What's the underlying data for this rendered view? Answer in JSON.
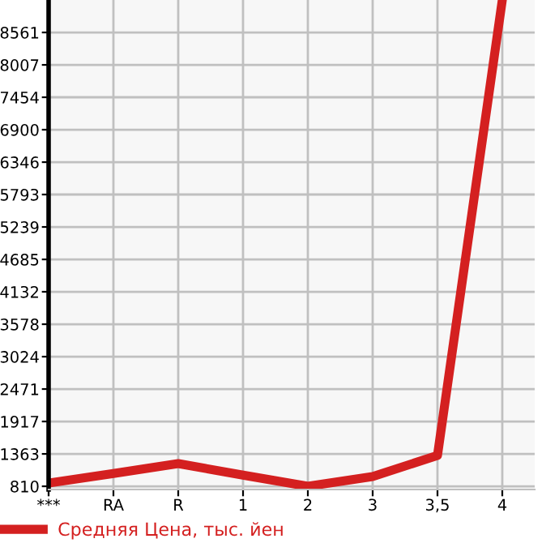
{
  "chart_data": {
    "type": "line",
    "categories": [
      "***",
      "RA",
      "R",
      "1",
      "2",
      "3",
      "3,5",
      "4"
    ],
    "series": [
      {
        "name": "Средняя Цена, тыс. йен",
        "color": "#d42020",
        "values": [
          865,
          1030,
          1197,
          1000,
          810,
          976,
          1336,
          9115
        ]
      }
    ],
    "ylim": [
      755,
      9115
    ],
    "yticks": [
      810,
      1363,
      1917,
      2471,
      3024,
      3578,
      4132,
      4685,
      5239,
      5793,
      6346,
      6900,
      7454,
      8007,
      8561
    ],
    "grid": true,
    "legend": "bottom",
    "marker": "none",
    "line_style": "solid"
  }
}
